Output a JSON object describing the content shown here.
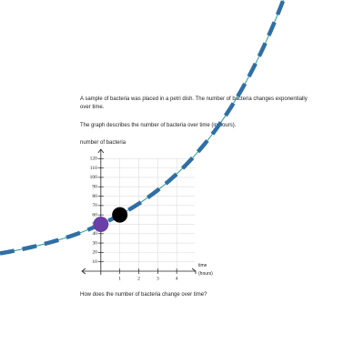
{
  "text": {
    "intro": "A sample of bacteria was placed in a petri dish. The number of bacteria changes exponentially over time.",
    "description": "The graph describes the number of bacteria over time (in hours).",
    "question": "How does the number of bacteria change over time?"
  },
  "chart_data": {
    "type": "scatter",
    "ylabel": "number of bacteria",
    "xlabel": [
      "time",
      "(hours)"
    ],
    "x": [
      0,
      1
    ],
    "series": [
      {
        "values": [
          50,
          60
        ],
        "colors": [
          "#6b3fa8",
          "#000000"
        ]
      }
    ],
    "curve_color": "#2a9d8f",
    "overlay_color": "#2f6fa5",
    "xlim": [
      -1,
      5
    ],
    "ylim": [
      0,
      130
    ],
    "xticks": [
      1,
      2,
      3,
      4
    ],
    "yticks": [
      10,
      20,
      30,
      40,
      50,
      60,
      70,
      80,
      90,
      100,
      110,
      120
    ],
    "grid": true
  }
}
